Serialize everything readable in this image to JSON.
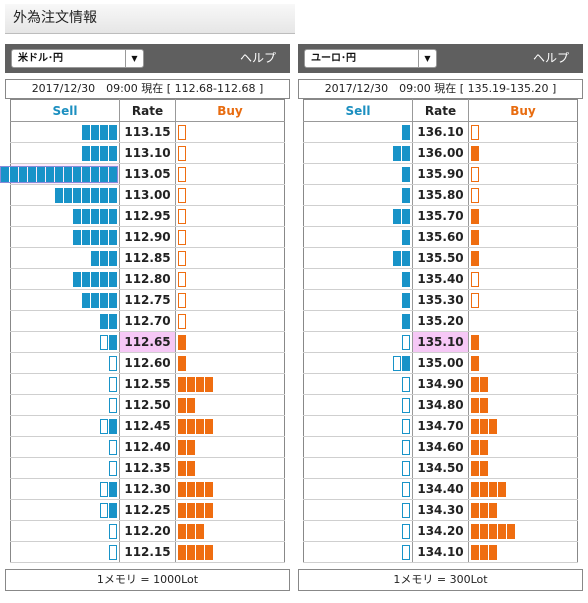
{
  "page_title": "外為注文情報",
  "panels": [
    {
      "pair": "米ドル･円",
      "help": "ヘルプ",
      "status": "2017/12/30　09:00 現在 [ 112.68-112.68 ]",
      "headers": {
        "sell": "Sell",
        "rate": "Rate",
        "buy": "Buy"
      },
      "current_rate": "112.65",
      "highlight_rate": "113.05",
      "rows": [
        {
          "rate": "113.15",
          "sell": 4,
          "buy": 0.5
        },
        {
          "rate": "113.10",
          "sell": 4,
          "buy": 0.5
        },
        {
          "rate": "113.05",
          "sell": 13,
          "buy": 0.5
        },
        {
          "rate": "113.00",
          "sell": 7,
          "buy": 0.5
        },
        {
          "rate": "112.95",
          "sell": 5,
          "buy": 0.5
        },
        {
          "rate": "112.90",
          "sell": 5,
          "buy": 0.5
        },
        {
          "rate": "112.85",
          "sell": 3,
          "buy": 0.5
        },
        {
          "rate": "112.80",
          "sell": 5,
          "buy": 0.5
        },
        {
          "rate": "112.75",
          "sell": 4,
          "buy": 0.5
        },
        {
          "rate": "112.70",
          "sell": 2,
          "buy": 0.5
        },
        {
          "rate": "112.65",
          "sell": 1.5,
          "buy": 1
        },
        {
          "rate": "112.60",
          "sell": 0.5,
          "buy": 1
        },
        {
          "rate": "112.55",
          "sell": 0.5,
          "buy": 4
        },
        {
          "rate": "112.50",
          "sell": 0.5,
          "buy": 2
        },
        {
          "rate": "112.45",
          "sell": 1.5,
          "buy": 4
        },
        {
          "rate": "112.40",
          "sell": 0.5,
          "buy": 2
        },
        {
          "rate": "112.35",
          "sell": 0.5,
          "buy": 2
        },
        {
          "rate": "112.30",
          "sell": 1.5,
          "buy": 4
        },
        {
          "rate": "112.25",
          "sell": 1.5,
          "buy": 4
        },
        {
          "rate": "112.20",
          "sell": 0.5,
          "buy": 3
        },
        {
          "rate": "112.15",
          "sell": 0.5,
          "buy": 4
        }
      ],
      "footer": "1メモリ = 1000Lot"
    },
    {
      "pair": "ユーロ･円",
      "help": "ヘルプ",
      "status": "2017/12/30　09:00 現在 [ 135.19-135.20 ]",
      "headers": {
        "sell": "Sell",
        "rate": "Rate",
        "buy": "Buy"
      },
      "current_rate": "135.10",
      "highlight_rate": "",
      "rows": [
        {
          "rate": "136.10",
          "sell": 1,
          "buy": 0.5
        },
        {
          "rate": "136.00",
          "sell": 2,
          "buy": 1
        },
        {
          "rate": "135.90",
          "sell": 1,
          "buy": 0.5
        },
        {
          "rate": "135.80",
          "sell": 1,
          "buy": 0.5
        },
        {
          "rate": "135.70",
          "sell": 2,
          "buy": 1
        },
        {
          "rate": "135.60",
          "sell": 1,
          "buy": 1
        },
        {
          "rate": "135.50",
          "sell": 2,
          "buy": 1
        },
        {
          "rate": "135.40",
          "sell": 1,
          "buy": 0.5
        },
        {
          "rate": "135.30",
          "sell": 1,
          "buy": 0.5
        },
        {
          "rate": "135.20",
          "sell": 1,
          "buy": 0
        },
        {
          "rate": "135.10",
          "sell": 0.5,
          "buy": 1
        },
        {
          "rate": "135.00",
          "sell": 1.5,
          "buy": 1
        },
        {
          "rate": "134.90",
          "sell": 0.5,
          "buy": 2
        },
        {
          "rate": "134.80",
          "sell": 0.5,
          "buy": 2
        },
        {
          "rate": "134.70",
          "sell": 0.5,
          "buy": 3
        },
        {
          "rate": "134.60",
          "sell": 0.5,
          "buy": 2
        },
        {
          "rate": "134.50",
          "sell": 0.5,
          "buy": 2
        },
        {
          "rate": "134.40",
          "sell": 0.5,
          "buy": 4
        },
        {
          "rate": "134.30",
          "sell": 0.5,
          "buy": 3
        },
        {
          "rate": "134.20",
          "sell": 0.5,
          "buy": 5
        },
        {
          "rate": "134.10",
          "sell": 0.5,
          "buy": 3
        }
      ],
      "footer": "1メモリ = 300Lot"
    }
  ]
}
